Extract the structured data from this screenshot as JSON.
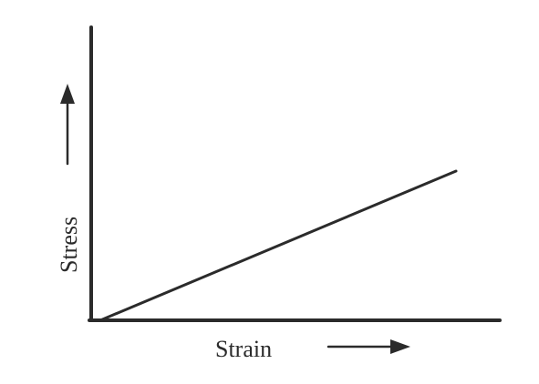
{
  "diagram": {
    "x_axis_label": "Strain",
    "y_axis_label": "Stress",
    "line": {
      "from": [
        0,
        0
      ],
      "to": [
        1,
        0.4
      ]
    }
  }
}
